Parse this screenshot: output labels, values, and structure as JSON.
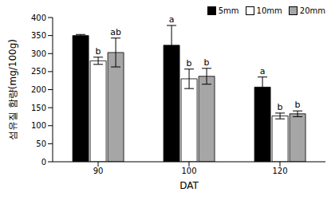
{
  "chart_data": {
    "type": "bar",
    "x_label": "DAT",
    "y_label": "섬유질 함량(mg/100g)",
    "categories": [
      "90",
      "100",
      "120"
    ],
    "series": [
      {
        "name": "5mm",
        "color": "#000000",
        "values": [
          350,
          323,
          207
        ],
        "error": [
          3,
          55,
          28
        ]
      },
      {
        "name": "10mm",
        "color": "#ffffff",
        "values": [
          280,
          230,
          127
        ],
        "error": [
          10,
          27,
          8
        ]
      },
      {
        "name": "20mm",
        "color": "#a6a6a6",
        "values": [
          303,
          237,
          133
        ],
        "error": [
          40,
          22,
          8
        ]
      }
    ],
    "ylim": [
      0,
      400
    ],
    "yticks": [
      0,
      50,
      100,
      150,
      200,
      250,
      300,
      350,
      400
    ],
    "grid": false,
    "legend": "top right",
    "annotations": [
      {
        "text": "b",
        "category": "90",
        "series": "10mm"
      },
      {
        "text": "ab",
        "category": "90",
        "series": "20mm"
      },
      {
        "text": "a",
        "category": "100",
        "series": "5mm"
      },
      {
        "text": "b",
        "category": "100",
        "series": "10mm"
      },
      {
        "text": "b",
        "category": "100",
        "series": "20mm"
      },
      {
        "text": "a",
        "category": "120",
        "series": "5mm"
      },
      {
        "text": "b",
        "category": "120",
        "series": "10mm"
      },
      {
        "text": "b",
        "category": "120",
        "series": "20mm"
      }
    ]
  }
}
